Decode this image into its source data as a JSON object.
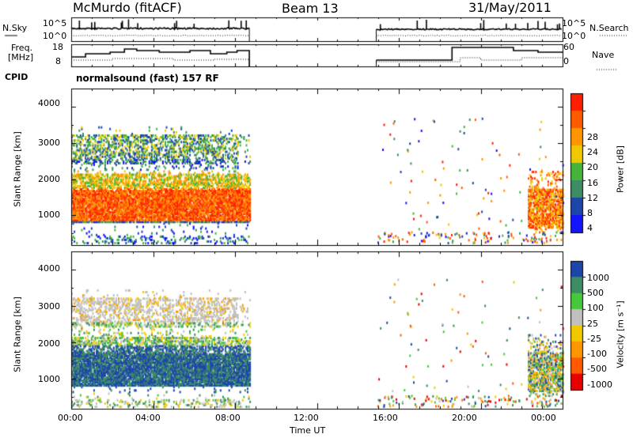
{
  "header": {
    "station": "McMurdo (fitACF)",
    "beam": "Beam 13",
    "date": "31/May/2011"
  },
  "small_panels": {
    "nsky_label": "N.Sky",
    "nsearch_label": "N.Search",
    "nsky_ticks": [
      "10^5",
      "10^0"
    ],
    "freq_label_1": "Freq.",
    "freq_label_2": "[MHz]",
    "freq_ticks": [
      "18",
      "8"
    ],
    "nave_label": "Nave",
    "nave_ticks": [
      "60",
      "0"
    ],
    "cpid_label": "CPID",
    "cpid_text": "normalsound (fast) 157 RF"
  },
  "colors": {
    "power_scale": [
      "#1414ff",
      "#1e46aa",
      "#3c8c64",
      "#46b43c",
      "#f0c800",
      "#ff9600",
      "#ff5a00",
      "#ff1e00"
    ],
    "velocity_scale": [
      "#e80000",
      "#ff5a00",
      "#ff9600",
      "#f0c800",
      "#c0c0c0",
      "#46c83c",
      "#3c8c64",
      "#1e46aa"
    ]
  },
  "chart_data": [
    {
      "type": "heatmap",
      "name": "power",
      "ylabel": "Slant Range [km]",
      "xlabel": "Time UT",
      "ylim": [
        180,
        4500
      ],
      "xlim": [
        0,
        24
      ],
      "yticks": [
        "4000",
        "3000",
        "2000",
        "1000"
      ],
      "xticks": [
        "00:00",
        "04:00",
        "08:00",
        "12:00",
        "16:00",
        "20:00",
        "00:00"
      ],
      "colorbar_label": "Power [dB]",
      "colorbar_ticks": [
        "28",
        "24",
        "20",
        "16",
        "12",
        "8",
        "4"
      ],
      "colorbar_range": [
        0,
        30
      ]
    },
    {
      "type": "heatmap",
      "name": "velocity",
      "ylabel": "Slant Range [km]",
      "xlabel": "Time UT",
      "ylim": [
        180,
        4500
      ],
      "xlim": [
        0,
        24
      ],
      "yticks": [
        "4000",
        "3000",
        "2000",
        "1000"
      ],
      "xticks": [
        "00:00",
        "04:00",
        "08:00",
        "12:00",
        "16:00",
        "20:00",
        "00:00"
      ],
      "colorbar_label": "Velocity [m s⁻¹]",
      "colorbar_ticks": [
        "1000",
        "500",
        "100",
        "25",
        "-25",
        "-100",
        "-500",
        "-1000"
      ],
      "colorbar_range": [
        -1200,
        1200
      ]
    }
  ]
}
